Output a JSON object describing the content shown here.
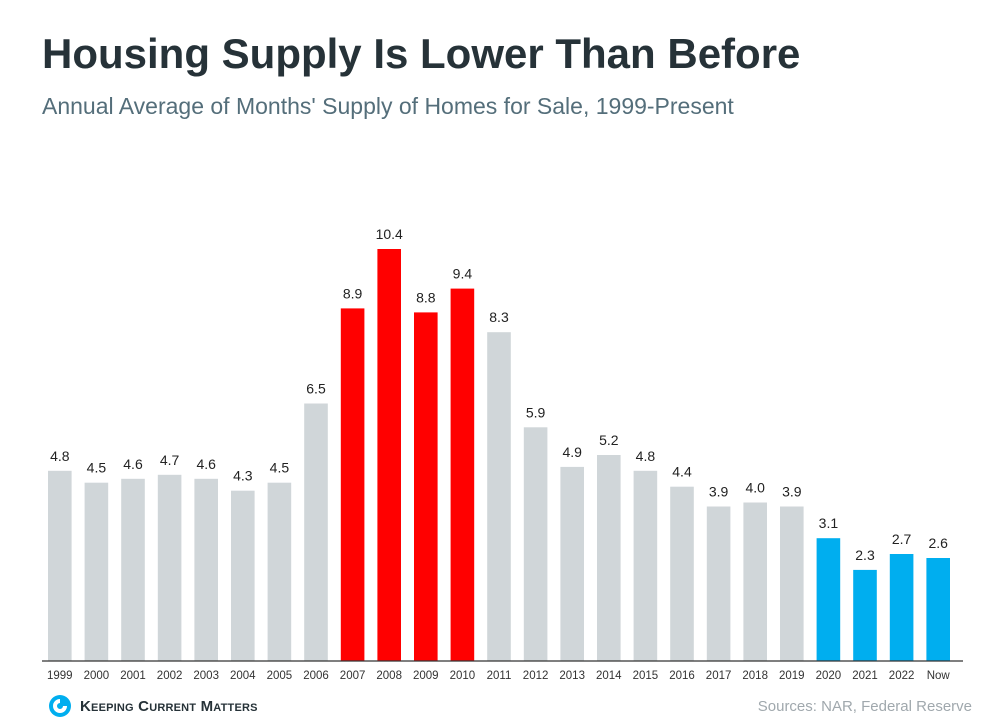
{
  "title": "Housing Supply Is Lower Than Before",
  "subtitle": "Annual Average of Months' Supply of Homes for Sale, 1999-Present",
  "brand": "Keeping Current Matters",
  "source": "Sources: NAR, Federal Reserve",
  "colors": {
    "default": "#d0d6d9",
    "highlight_red": "#ff0000",
    "highlight_blue": "#00aeef",
    "axis": "#333333",
    "label": "#222222"
  },
  "chart_data": {
    "type": "bar",
    "title": "Housing Supply Is Lower Than Before",
    "subtitle": "Annual Average of Months' Supply of Homes for Sale, 1999-Present",
    "xlabel": "",
    "ylabel": "",
    "ylim": [
      0,
      10.4
    ],
    "grid": false,
    "categories": [
      "1999",
      "2000",
      "2001",
      "2002",
      "2003",
      "2004",
      "2005",
      "2006",
      "2007",
      "2008",
      "2009",
      "2010",
      "2011",
      "2012",
      "2013",
      "2014",
      "2015",
      "2016",
      "2017",
      "2018",
      "2019",
      "2020",
      "2021",
      "2022",
      "Now"
    ],
    "values": [
      4.8,
      4.5,
      4.6,
      4.7,
      4.6,
      4.3,
      4.5,
      6.5,
      8.9,
      10.4,
      8.8,
      9.4,
      8.3,
      5.9,
      4.9,
      5.2,
      4.8,
      4.4,
      3.9,
      4.0,
      3.9,
      3.1,
      2.3,
      2.7,
      2.6
    ],
    "value_labels": [
      "4.8",
      "4.5",
      "4.6",
      "4.7",
      "4.6",
      "4.3",
      "4.5",
      "6.5",
      "8.9",
      "10.4",
      "8.8",
      "9.4",
      "8.3",
      "5.9",
      "4.9",
      "5.2",
      "4.8",
      "4.4",
      "3.9",
      "4.0",
      "3.9",
      "3.1",
      "2.3",
      "2.7",
      "2.6"
    ],
    "bar_colors": [
      "#d0d6d9",
      "#d0d6d9",
      "#d0d6d9",
      "#d0d6d9",
      "#d0d6d9",
      "#d0d6d9",
      "#d0d6d9",
      "#d0d6d9",
      "#ff0000",
      "#ff0000",
      "#ff0000",
      "#ff0000",
      "#d0d6d9",
      "#d0d6d9",
      "#d0d6d9",
      "#d0d6d9",
      "#d0d6d9",
      "#d0d6d9",
      "#d0d6d9",
      "#d0d6d9",
      "#d0d6d9",
      "#00aeef",
      "#00aeef",
      "#00aeef",
      "#00aeef"
    ]
  }
}
